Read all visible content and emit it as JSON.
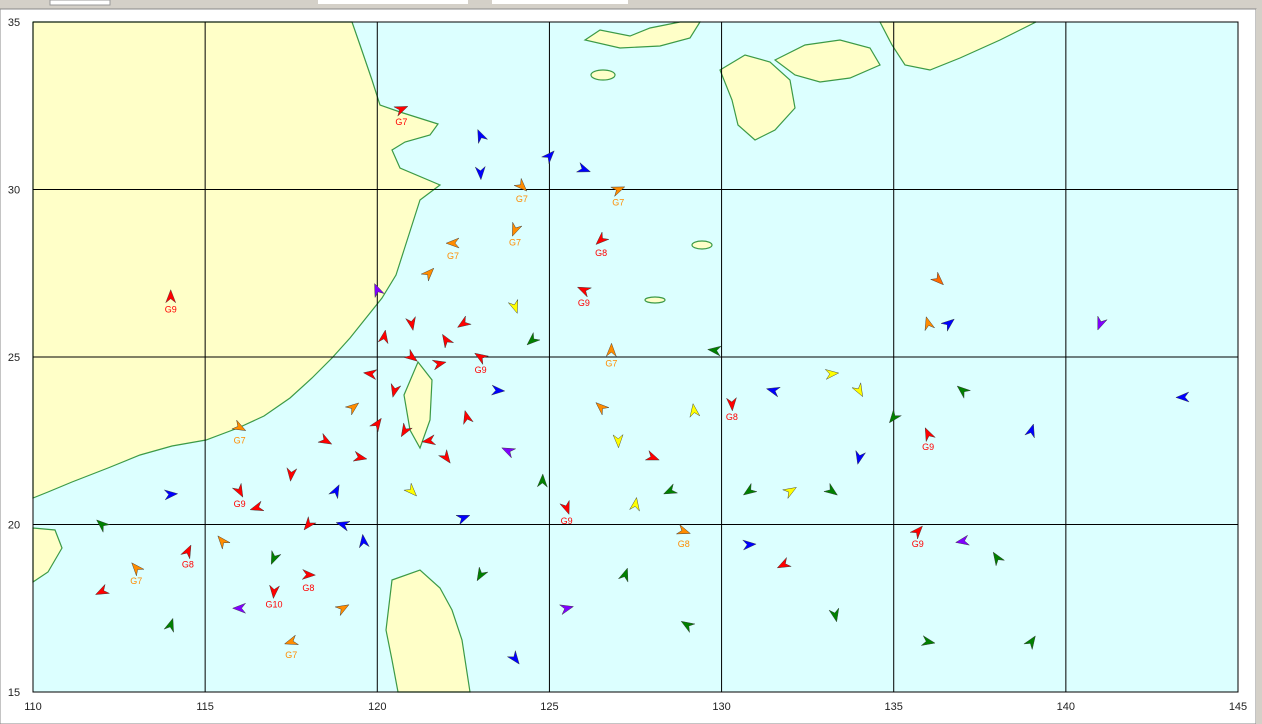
{
  "map": {
    "xlim": [
      110,
      145
    ],
    "ylim": [
      15,
      35
    ],
    "xticks": [
      110,
      115,
      120,
      125,
      130,
      135,
      140,
      145
    ],
    "yticks": [
      15,
      20,
      25,
      30,
      35
    ],
    "markers": [
      {
        "lon": 114.0,
        "lat": 26.8,
        "color": "#ff0000",
        "label": "G9"
      },
      {
        "lon": 120.7,
        "lat": 32.4,
        "color": "#ff0000",
        "label": "G7"
      },
      {
        "lon": 136.3,
        "lat": 27.3,
        "color": "#ff6a00"
      },
      {
        "lon": 141.0,
        "lat": 26.0,
        "color": "#8000ff"
      },
      {
        "lon": 143.4,
        "lat": 23.8,
        "color": "#0000ff"
      },
      {
        "lon": 136.0,
        "lat": 22.7,
        "color": "#ff0000",
        "label": "G9"
      },
      {
        "lon": 135.7,
        "lat": 19.8,
        "color": "#ff0000",
        "label": "G9"
      },
      {
        "lon": 128.9,
        "lat": 19.8,
        "color": "#ff8c00",
        "label": "G8"
      },
      {
        "lon": 130.3,
        "lat": 23.6,
        "color": "#ff0000",
        "label": "G8"
      },
      {
        "lon": 131.8,
        "lat": 18.8,
        "color": "#ff0000"
      },
      {
        "lon": 137.0,
        "lat": 24.0,
        "color": "#008000"
      },
      {
        "lon": 139.0,
        "lat": 22.8,
        "color": "#0000ff"
      },
      {
        "lon": 133.2,
        "lat": 24.5,
        "color": "#ffff00"
      },
      {
        "lon": 134.0,
        "lat": 24.0,
        "color": "#ffff00"
      },
      {
        "lon": 135.0,
        "lat": 23.2,
        "color": "#008000"
      },
      {
        "lon": 131.5,
        "lat": 24.0,
        "color": "#0000ff"
      },
      {
        "lon": 129.2,
        "lat": 23.4,
        "color": "#ffff00"
      },
      {
        "lon": 132.0,
        "lat": 21.0,
        "color": "#ffff00"
      },
      {
        "lon": 133.2,
        "lat": 21.0,
        "color": "#008000"
      },
      {
        "lon": 134.0,
        "lat": 22.0,
        "color": "#0000ff"
      },
      {
        "lon": 137.0,
        "lat": 19.5,
        "color": "#8000ff"
      },
      {
        "lon": 138.0,
        "lat": 19.0,
        "color": "#008000"
      },
      {
        "lon": 139.0,
        "lat": 16.5,
        "color": "#008000"
      },
      {
        "lon": 136.0,
        "lat": 16.5,
        "color": "#008000"
      },
      {
        "lon": 133.3,
        "lat": 17.3,
        "color": "#008000"
      },
      {
        "lon": 130.8,
        "lat": 21.0,
        "color": "#008000"
      },
      {
        "lon": 129.0,
        "lat": 17.0,
        "color": "#008000"
      },
      {
        "lon": 127.5,
        "lat": 20.6,
        "color": "#ffff00"
      },
      {
        "lon": 125.5,
        "lat": 17.5,
        "color": "#8000ff"
      },
      {
        "lon": 124.0,
        "lat": 16.0,
        "color": "#0000ff"
      },
      {
        "lon": 123.0,
        "lat": 18.5,
        "color": "#008000"
      },
      {
        "lon": 129.8,
        "lat": 25.2,
        "color": "#008000"
      },
      {
        "lon": 136.0,
        "lat": 26.0,
        "color": "#ff8c00"
      },
      {
        "lon": 136.6,
        "lat": 26.0,
        "color": "#0000ff"
      },
      {
        "lon": 116.0,
        "lat": 22.9,
        "color": "#ff8c00",
        "label": "G7"
      },
      {
        "lon": 117.0,
        "lat": 18.0,
        "color": "#ff0000",
        "label": "G10"
      },
      {
        "lon": 117.5,
        "lat": 16.5,
        "color": "#ff8c00",
        "label": "G7"
      },
      {
        "lon": 113.0,
        "lat": 18.7,
        "color": "#ff8c00",
        "label": "G7"
      },
      {
        "lon": 114.5,
        "lat": 19.2,
        "color": "#ff0000",
        "label": "G8"
      },
      {
        "lon": 118.0,
        "lat": 18.5,
        "color": "#ff0000",
        "label": "G8"
      },
      {
        "lon": 125.5,
        "lat": 20.5,
        "color": "#ff0000",
        "label": "G9"
      },
      {
        "lon": 126.5,
        "lat": 28.5,
        "color": "#ff0000",
        "label": "G8"
      },
      {
        "lon": 126.0,
        "lat": 27.0,
        "color": "#ff0000",
        "label": "G9"
      },
      {
        "lon": 126.8,
        "lat": 25.2,
        "color": "#ff8c00",
        "label": "G7"
      },
      {
        "lon": 127.0,
        "lat": 30.0,
        "color": "#ff8c00",
        "label": "G7"
      },
      {
        "lon": 124.2,
        "lat": 30.1,
        "color": "#ff8c00",
        "label": "G7"
      },
      {
        "lon": 124.0,
        "lat": 28.8,
        "color": "#ff8c00",
        "label": "G7"
      },
      {
        "lon": 122.2,
        "lat": 28.4,
        "color": "#ff8c00",
        "label": "G7"
      },
      {
        "lon": 123.0,
        "lat": 31.6,
        "color": "#0000ff"
      },
      {
        "lon": 125.0,
        "lat": 31.0,
        "color": "#0000ff"
      },
      {
        "lon": 126.0,
        "lat": 30.6,
        "color": "#0000ff"
      },
      {
        "lon": 123.0,
        "lat": 30.5,
        "color": "#0000ff"
      },
      {
        "lon": 112.0,
        "lat": 18.0,
        "color": "#ff0000"
      },
      {
        "lon": 112.0,
        "lat": 20.0,
        "color": "#008000"
      },
      {
        "lon": 114.0,
        "lat": 17.0,
        "color": "#008000"
      },
      {
        "lon": 114.0,
        "lat": 20.9,
        "color": "#0000ff"
      },
      {
        "lon": 116.0,
        "lat": 21.0,
        "color": "#ff0000",
        "label": "G9"
      },
      {
        "lon": 118.0,
        "lat": 20.0,
        "color": "#ff0000"
      },
      {
        "lon": 119.0,
        "lat": 20.0,
        "color": "#0000ff"
      },
      {
        "lon": 119.6,
        "lat": 19.5,
        "color": "#0000ff"
      },
      {
        "lon": 119.0,
        "lat": 17.5,
        "color": "#ff8c00"
      },
      {
        "lon": 121.0,
        "lat": 25.0,
        "color": "#ff0000"
      },
      {
        "lon": 120.5,
        "lat": 24.0,
        "color": "#ff0000"
      },
      {
        "lon": 121.5,
        "lat": 22.5,
        "color": "#ff0000"
      },
      {
        "lon": 122.0,
        "lat": 25.5,
        "color": "#ff0000"
      },
      {
        "lon": 120.0,
        "lat": 23.0,
        "color": "#ff0000"
      },
      {
        "lon": 119.5,
        "lat": 22.0,
        "color": "#ff0000"
      },
      {
        "lon": 121.0,
        "lat": 26.0,
        "color": "#ff0000"
      },
      {
        "lon": 122.5,
        "lat": 26.0,
        "color": "#ff0000"
      },
      {
        "lon": 123.0,
        "lat": 25.0,
        "color": "#ff0000",
        "label": "G9"
      },
      {
        "lon": 120.2,
        "lat": 25.6,
        "color": "#ff0000"
      },
      {
        "lon": 121.8,
        "lat": 24.8,
        "color": "#ff0000"
      },
      {
        "lon": 122.0,
        "lat": 22.0,
        "color": "#ff0000"
      },
      {
        "lon": 120.8,
        "lat": 22.8,
        "color": "#ff0000"
      },
      {
        "lon": 119.8,
        "lat": 24.5,
        "color": "#ff0000"
      },
      {
        "lon": 122.6,
        "lat": 23.2,
        "color": "#ff0000"
      },
      {
        "lon": 119.3,
        "lat": 23.5,
        "color": "#ff8c00"
      },
      {
        "lon": 118.5,
        "lat": 22.5,
        "color": "#ff0000"
      },
      {
        "lon": 117.5,
        "lat": 21.5,
        "color": "#ff0000"
      },
      {
        "lon": 116.5,
        "lat": 20.5,
        "color": "#ff0000"
      },
      {
        "lon": 115.5,
        "lat": 19.5,
        "color": "#ff8c00"
      },
      {
        "lon": 118.8,
        "lat": 21.0,
        "color": "#0000ff"
      },
      {
        "lon": 123.5,
        "lat": 24.0,
        "color": "#0000ff"
      },
      {
        "lon": 124.0,
        "lat": 26.5,
        "color": "#ffff00"
      },
      {
        "lon": 124.5,
        "lat": 25.5,
        "color": "#008000"
      },
      {
        "lon": 123.8,
        "lat": 22.2,
        "color": "#8000ff"
      },
      {
        "lon": 124.8,
        "lat": 21.3,
        "color": "#008000"
      },
      {
        "lon": 122.5,
        "lat": 20.2,
        "color": "#0000ff"
      },
      {
        "lon": 121.0,
        "lat": 21.0,
        "color": "#ffff00"
      },
      {
        "lon": 117.0,
        "lat": 19.0,
        "color": "#008000"
      },
      {
        "lon": 116.0,
        "lat": 17.5,
        "color": "#8000ff"
      },
      {
        "lon": 120.0,
        "lat": 27.0,
        "color": "#8000ff"
      },
      {
        "lon": 121.5,
        "lat": 27.5,
        "color": "#ff8c00"
      },
      {
        "lon": 128.0,
        "lat": 22.0,
        "color": "#ff0000"
      },
      {
        "lon": 127.0,
        "lat": 22.5,
        "color": "#ffff00"
      },
      {
        "lon": 128.5,
        "lat": 21.0,
        "color": "#008000"
      },
      {
        "lon": 126.5,
        "lat": 23.5,
        "color": "#ff8c00"
      },
      {
        "lon": 127.2,
        "lat": 18.5,
        "color": "#008000"
      },
      {
        "lon": 130.8,
        "lat": 19.4,
        "color": "#0000ff"
      }
    ]
  }
}
